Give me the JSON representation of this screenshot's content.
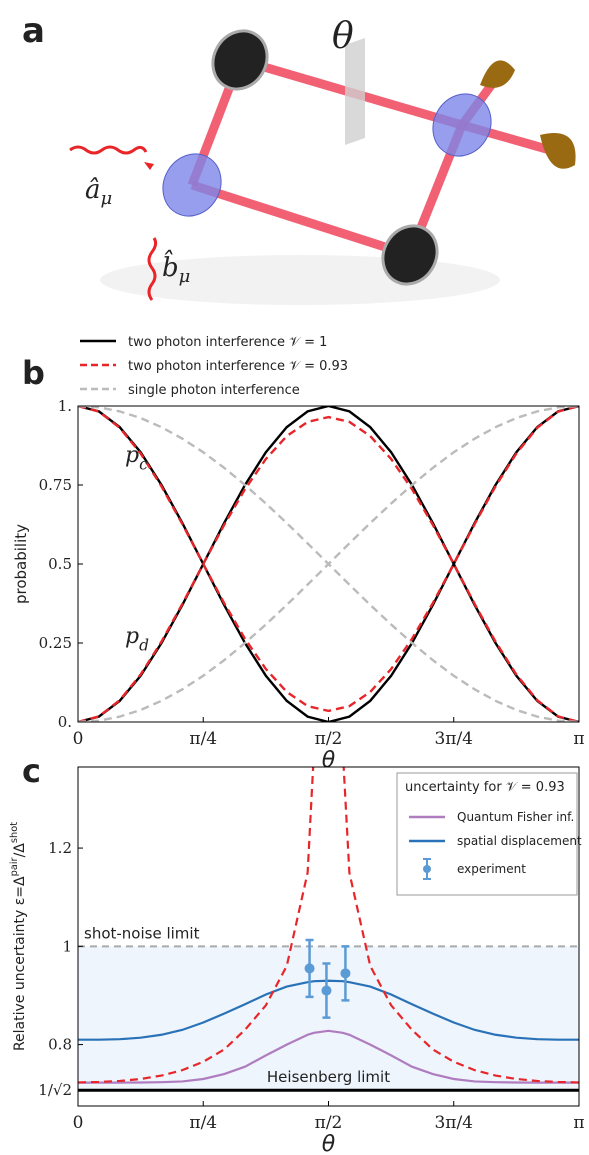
{
  "diagram": {
    "panel": "a",
    "angle_label": "θ",
    "input_a": [
      "â",
      "μ"
    ],
    "input_b": [
      "b̂",
      "μ"
    ]
  },
  "chart_data": [
    {
      "type": "line",
      "panel": "b",
      "ylabel": "probability",
      "xlabel": "θ",
      "x": [
        0,
        0.1309,
        0.2618,
        0.3927,
        0.5236,
        0.6545,
        0.7854,
        0.9163,
        1.0472,
        1.1781,
        1.309,
        1.4399,
        1.5708,
        1.7017,
        1.8326,
        1.9635,
        2.0944,
        2.2253,
        2.3562,
        2.4871,
        2.618,
        2.7489,
        2.8798,
        3.0107,
        3.1416
      ],
      "xlim": [
        0,
        3.1416
      ],
      "ylim": [
        0,
        1
      ],
      "xticks": [
        0,
        {
          "value": 0.7854,
          "label": "π/4"
        },
        {
          "value": 1.5708,
          "label": "π/2"
        },
        {
          "value": 2.3562,
          "label": "3π/4"
        },
        {
          "value": 3.1416,
          "label": "π"
        }
      ],
      "yticks": [
        {
          "value": 0,
          "label": "0."
        },
        0.25,
        0.5,
        0.75,
        {
          "value": 1,
          "label": "1."
        }
      ],
      "series": [
        {
          "name": "two photon interference 𝒱 = 1",
          "color": "#000000",
          "dash": "solid",
          "values": [
            [
              1,
              0.983,
              0.933,
              0.8536,
              0.75,
              0.6294,
              0.5,
              0.3706,
              0.25,
              0.1464,
              0.067,
              0.017,
              0,
              0.017,
              0.067,
              0.1464,
              0.25,
              0.3706,
              0.5,
              0.6294,
              0.75,
              0.8536,
              0.933,
              0.983,
              1
            ],
            [
              0,
              0.017,
              0.067,
              0.1464,
              0.25,
              0.3706,
              0.5,
              0.6294,
              0.75,
              0.8536,
              0.933,
              0.983,
              1,
              0.983,
              0.933,
              0.8536,
              0.75,
              0.6294,
              0.5,
              0.3706,
              0.25,
              0.1464,
              0.067,
              0.017,
              0
            ]
          ]
        },
        {
          "name": "two photon interference 𝒱 = 0.93",
          "color": "#e8262a",
          "dash": "dashed",
          "values": [
            [
              1,
              0.9824,
              0.931,
              0.8499,
              0.7456,
              0.6261,
              0.5,
              0.3763,
              0.2631,
              0.1676,
              0.0953,
              0.0503,
              0.035,
              0.0503,
              0.0953,
              0.1676,
              0.2631,
              0.3763,
              0.5,
              0.6261,
              0.7456,
              0.8499,
              0.931,
              0.9824,
              1
            ],
            [
              0,
              0.0176,
              0.069,
              0.1501,
              0.2544,
              0.3739,
              0.5,
              0.6237,
              0.7369,
              0.8324,
              0.9047,
              0.9497,
              0.965,
              0.9497,
              0.9047,
              0.8324,
              0.7369,
              0.6237,
              0.5,
              0.3739,
              0.2544,
              0.1501,
              0.069,
              0.0176,
              0
            ]
          ]
        },
        {
          "name": "single photon interference",
          "color": "#bbbbbb",
          "dash": "dashed",
          "values": [
            [
              1,
              0.9957,
              0.983,
              0.9619,
              0.933,
              0.8967,
              0.8536,
              0.8044,
              0.75,
              0.6913,
              0.6294,
              0.5653,
              0.5,
              0.4347,
              0.3706,
              0.3087,
              0.25,
              0.1956,
              0.1464,
              0.1033,
              0.067,
              0.0381,
              0.017,
              0.0043,
              0
            ],
            [
              0,
              0.0043,
              0.017,
              0.0381,
              0.067,
              0.1033,
              0.1464,
              0.1956,
              0.25,
              0.3087,
              0.3706,
              0.4347,
              0.5,
              0.5653,
              0.6294,
              0.6913,
              0.75,
              0.8044,
              0.8536,
              0.8967,
              0.933,
              0.9619,
              0.983,
              0.9957,
              1
            ]
          ]
        }
      ],
      "curve_labels": [
        [
          "p",
          "c"
        ],
        [
          "p",
          "d"
        ]
      ],
      "legend": "above"
    },
    {
      "type": "line",
      "panel": "c",
      "ylabel": [
        "Relative uncertainty ε=Δ",
        "pair",
        "/Δ",
        "shot"
      ],
      "xlabel": "θ",
      "x": [
        0,
        0.1309,
        0.2618,
        0.3927,
        0.5236,
        0.6545,
        0.7854,
        0.9163,
        1.0472,
        1.1781,
        1.309,
        1.4399,
        1.48,
        1.5708,
        1.66,
        1.7017,
        1.8326,
        1.9635,
        2.0944,
        2.2253,
        2.3562,
        2.4871,
        2.618,
        2.7489,
        2.8798,
        3.0107,
        3.1416
      ],
      "xlim": [
        0,
        3.1416
      ],
      "ylim": [
        0.675,
        1.365
      ],
      "xticks": [
        0,
        {
          "value": 0.7854,
          "label": "π/4"
        },
        {
          "value": 1.5708,
          "label": "π/2"
        },
        {
          "value": 2.3562,
          "label": "3π/4"
        },
        {
          "value": 3.1416,
          "label": "π"
        }
      ],
      "yticks": [
        {
          "value": 0.7071,
          "label": "1/√2"
        },
        0.8,
        1,
        1.2
      ],
      "series": [
        {
          "name": "Quantum Fisher inf.",
          "color": "#b07cc0",
          "dash": "solid",
          "values": [
            0.7225,
            0.7225,
            0.7226,
            0.7228,
            0.7235,
            0.725,
            0.73,
            0.74,
            0.755,
            0.778,
            0.8,
            0.82,
            0.824,
            0.828,
            0.824,
            0.82,
            0.8,
            0.778,
            0.755,
            0.74,
            0.73,
            0.725,
            0.7235,
            0.7228,
            0.7226,
            0.7225,
            0.7225
          ]
        },
        {
          "name": "spatial displacement",
          "color": "#2a72b8",
          "dash": "solid",
          "values": [
            0.81,
            0.81,
            0.811,
            0.814,
            0.82,
            0.83,
            0.845,
            0.863,
            0.882,
            0.902,
            0.918,
            0.927,
            0.929,
            0.93,
            0.929,
            0.927,
            0.918,
            0.902,
            0.882,
            0.863,
            0.845,
            0.83,
            0.82,
            0.814,
            0.811,
            0.81,
            0.81
          ]
        },
        {
          "color": "#e8262a",
          "dash": "dashed",
          "values": [
            0.723,
            0.724,
            0.726,
            0.73,
            0.737,
            0.748,
            0.765,
            0.79,
            0.83,
            0.88,
            0.96,
            1.15,
            1.4,
            null,
            1.4,
            1.15,
            0.96,
            0.88,
            0.83,
            0.79,
            0.765,
            0.748,
            0.737,
            0.73,
            0.726,
            0.724,
            0.723
          ]
        }
      ],
      "experiment": {
        "name": "experiment",
        "color": "#5b9bd5",
        "x": [
          1.452,
          1.558,
          1.677
        ],
        "values": [
          0.955,
          0.91,
          0.945
        ],
        "errors": [
          0.058,
          0.055,
          0.055
        ]
      },
      "hlines": [
        {
          "label": "shot-noise limit",
          "value": 1,
          "color": "#aaaaaa",
          "dash": "dashed"
        },
        {
          "label": "Heisenberg limit",
          "value": 0.7071,
          "color": "#000000",
          "dash": "solid"
        }
      ],
      "band_color": "#eef5fc",
      "legend_title": "uncertainty for 𝒱 = 0.93",
      "legend": "upper right"
    }
  ]
}
